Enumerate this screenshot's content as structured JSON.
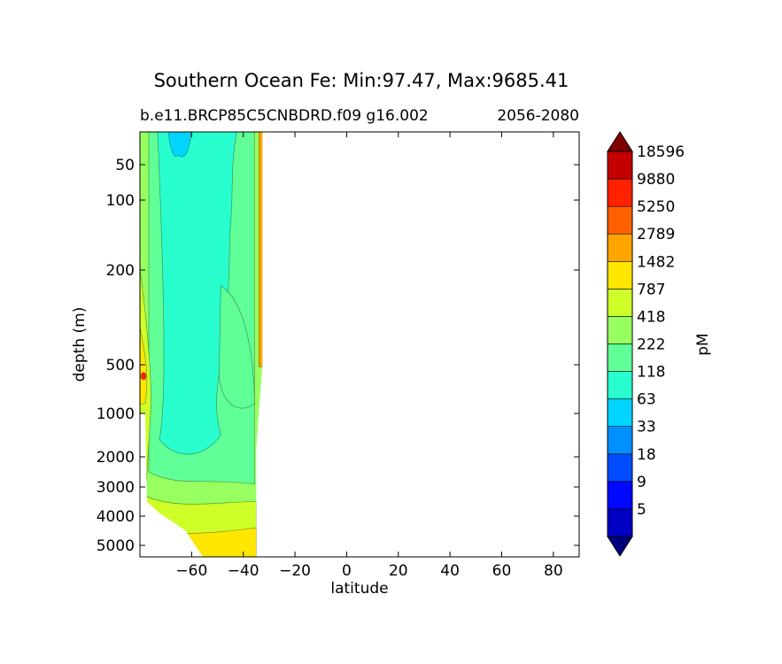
{
  "chart_data": {
    "type": "contour",
    "title": "Southern Ocean Fe: Min:97.47, Max:9685.41",
    "subtitle_left": "b.e11.BRCP85C5CNBDRD.f09 g16.002",
    "subtitle_right": "2056-2080",
    "xlabel": "latitude",
    "ylabel": "depth (m)",
    "xlim": [
      -80,
      90
    ],
    "x_ticks": [
      -60,
      -40,
      -20,
      0,
      20,
      40,
      60,
      80
    ],
    "x_tick_labels": [
      "−60",
      "−40",
      "−20",
      "0",
      "20",
      "40",
      "60",
      "80"
    ],
    "y_ticks": [
      50,
      100,
      200,
      500,
      1000,
      2000,
      3000,
      4000,
      5000
    ],
    "y_tick_labels": [
      "50",
      "100",
      "200",
      "500",
      "1000",
      "2000",
      "3000",
      "4000",
      "5000"
    ],
    "data_extent_lat": [
      -80,
      -35
    ],
    "colorbar": {
      "label": "pM",
      "levels": [
        "5",
        "9",
        "18",
        "33",
        "63",
        "118",
        "222",
        "418",
        "787",
        "1482",
        "2789",
        "5250",
        "9880",
        "18596"
      ],
      "colors": [
        "#00007f",
        "#0000c4",
        "#0008ff",
        "#004cff",
        "#0090ff",
        "#00d4ff",
        "#29ffce",
        "#60ff97",
        "#97ff60",
        "#ceff29",
        "#ffe600",
        "#ffa400",
        "#ff6000",
        "#ff2200",
        "#c40000",
        "#7f0000"
      ]
    }
  }
}
